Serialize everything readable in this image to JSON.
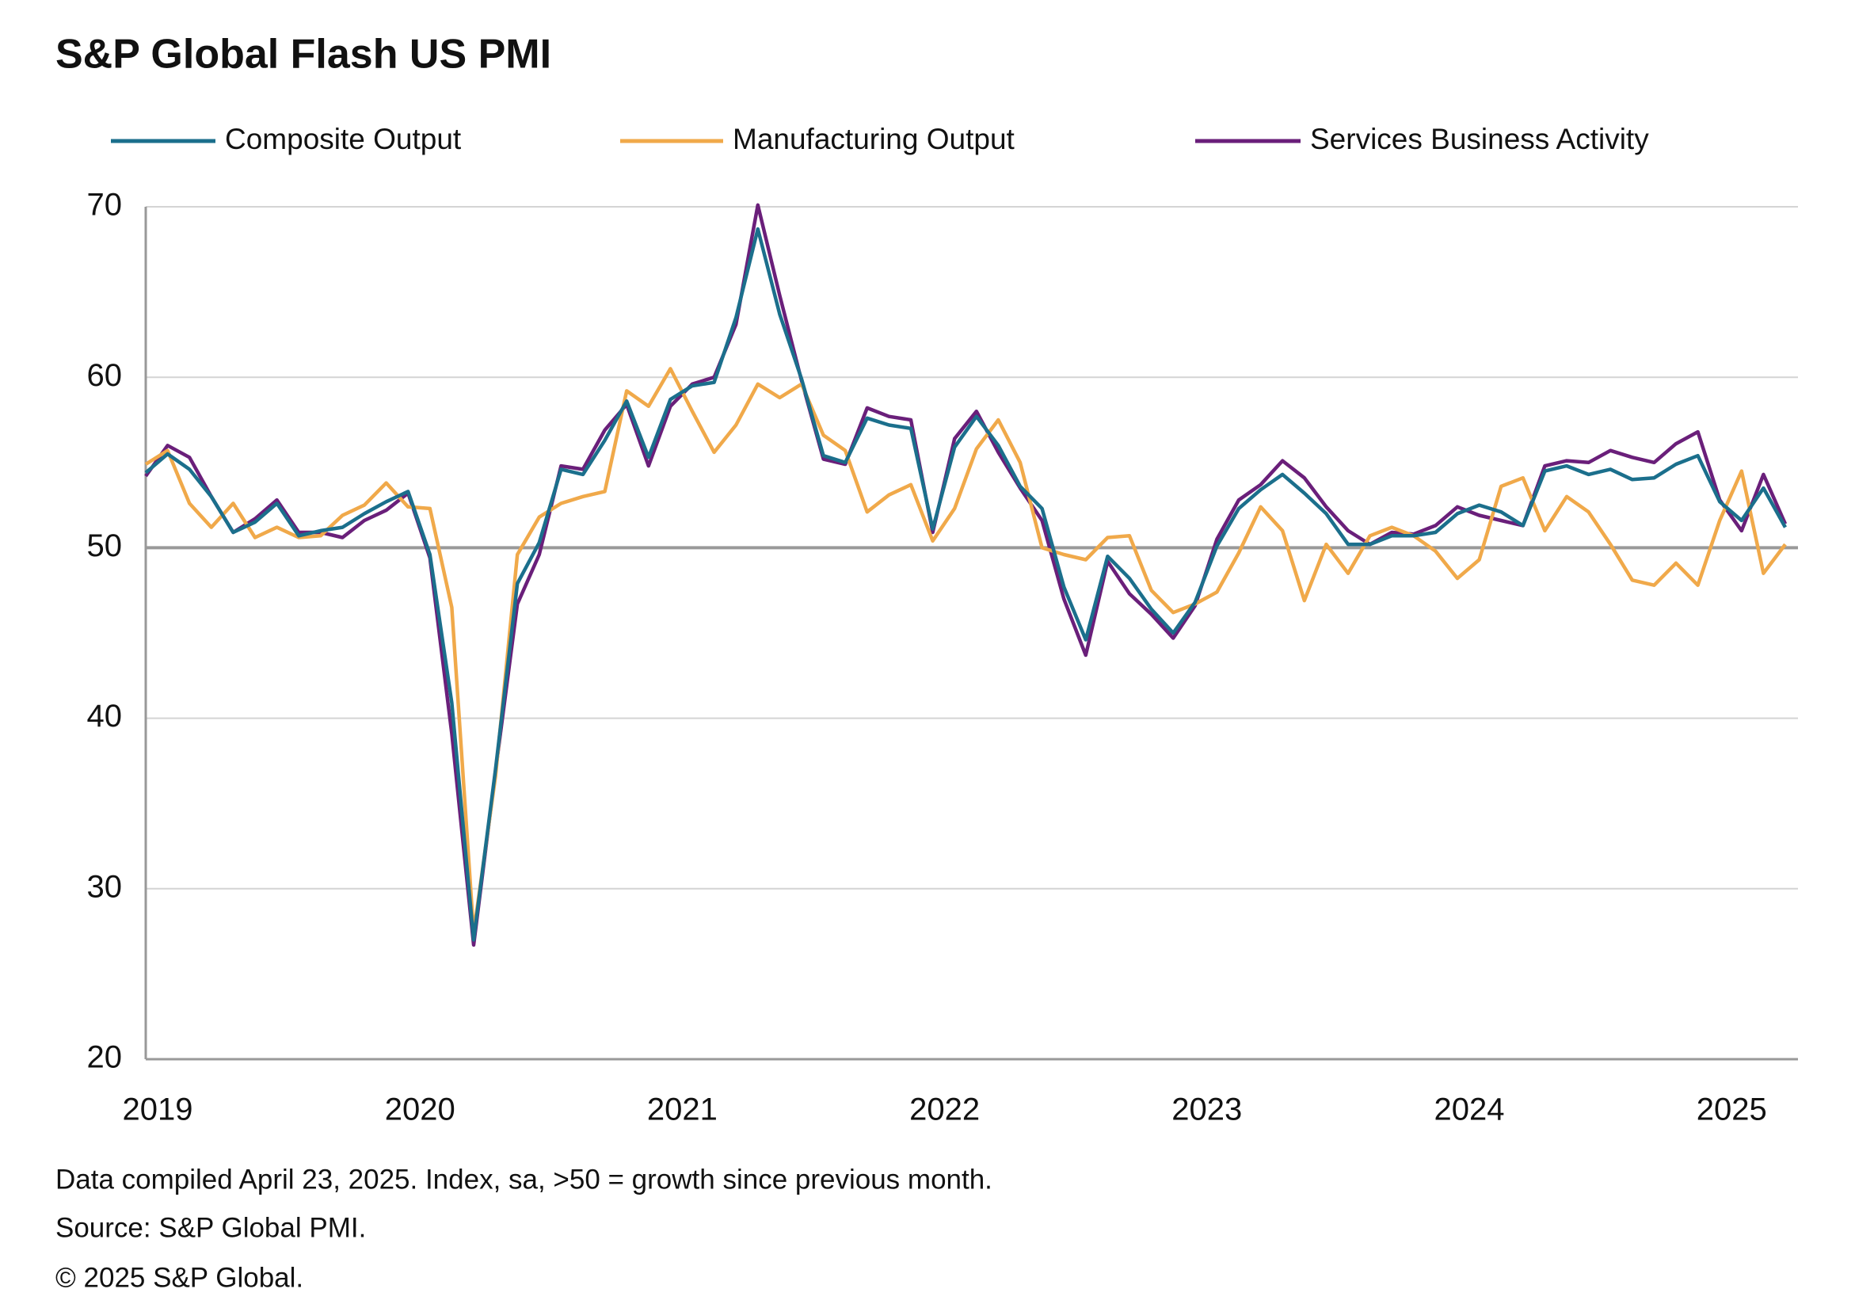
{
  "chart_data": {
    "type": "line",
    "title": "S&P Global Flash US PMI",
    "notes": [
      "Data compiled April 23, 2025. Index,  sa, >50 = growth since previous month.",
      "Source: S&P Global PMI.",
      "© 2025 S&P Global."
    ],
    "categories": [
      "2019",
      null,
      null,
      null,
      null,
      null,
      null,
      null,
      null,
      null,
      null,
      null,
      "2020",
      null,
      null,
      null,
      null,
      null,
      null,
      null,
      null,
      null,
      null,
      null,
      "2021",
      null,
      null,
      null,
      null,
      null,
      null,
      null,
      null,
      null,
      null,
      null,
      "2022",
      null,
      null,
      null,
      null,
      null,
      null,
      null,
      null,
      null,
      null,
      null,
      "2023",
      null,
      null,
      null,
      null,
      null,
      null,
      null,
      null,
      null,
      null,
      null,
      "2024",
      null,
      null,
      null,
      null,
      null,
      null,
      null,
      null,
      null,
      null,
      null,
      "2025",
      null,
      null,
      null
    ],
    "series": [
      {
        "name": "Composite Output",
        "color": "#1b6f8c",
        "values": [
          54.4,
          55.5,
          54.6,
          53.0,
          50.9,
          51.5,
          52.6,
          50.7,
          51.0,
          51.2,
          52.0,
          52.7,
          53.3,
          49.6,
          40.9,
          27.0,
          37.0,
          47.9,
          50.3,
          54.6,
          54.3,
          56.3,
          58.6,
          55.3,
          58.7,
          59.5,
          59.7,
          63.5,
          68.7,
          63.7,
          59.9,
          55.4,
          55.0,
          57.6,
          57.2,
          57.0,
          51.1,
          55.9,
          57.7,
          56.0,
          53.6,
          52.3,
          47.7,
          44.6,
          49.5,
          48.2,
          46.4,
          45.0,
          46.8,
          50.1,
          52.3,
          53.4,
          54.3,
          53.2,
          52.0,
          50.2,
          50.2,
          50.7,
          50.7,
          50.9,
          52.0,
          52.5,
          52.1,
          51.3,
          54.5,
          54.8,
          54.3,
          54.6,
          54.0,
          54.1,
          54.9,
          55.4,
          52.7,
          51.6,
          53.5,
          51.2
        ]
      },
      {
        "name": "Manufacturing Output",
        "color": "#f0a94a",
        "values": [
          54.9,
          55.7,
          52.6,
          51.2,
          52.6,
          50.6,
          51.2,
          50.6,
          50.7,
          51.9,
          52.5,
          53.8,
          52.4,
          52.3,
          46.5,
          27.4,
          36.6,
          49.6,
          51.8,
          52.6,
          53.0,
          53.3,
          59.2,
          58.3,
          60.5,
          58.0,
          55.6,
          57.2,
          59.6,
          58.8,
          59.6,
          56.6,
          55.7,
          52.1,
          53.1,
          53.7,
          50.4,
          52.3,
          55.8,
          57.5,
          55.0,
          50.0,
          49.6,
          49.3,
          50.6,
          50.7,
          47.5,
          46.2,
          46.7,
          47.4,
          49.7,
          52.4,
          51.0,
          46.9,
          50.2,
          48.5,
          50.7,
          51.2,
          50.7,
          49.8,
          48.2,
          49.3,
          53.6,
          54.1,
          51.0,
          53.0,
          52.1,
          50.2,
          48.1,
          47.8,
          49.1,
          47.8,
          51.6,
          54.5,
          48.5,
          50.2
        ]
      },
      {
        "name": "Services Business Activity",
        "color": "#6a1f7a",
        "values": [
          54.2,
          56.0,
          55.3,
          53.0,
          50.9,
          51.7,
          52.8,
          50.9,
          50.9,
          50.6,
          51.6,
          52.2,
          53.2,
          49.4,
          39.1,
          26.7,
          36.9,
          46.7,
          49.6,
          54.8,
          54.6,
          56.9,
          58.4,
          54.8,
          58.3,
          59.6,
          60.0,
          63.1,
          70.1,
          64.8,
          59.8,
          55.2,
          54.9,
          58.2,
          57.7,
          57.5,
          50.9,
          56.4,
          58.0,
          55.6,
          53.5,
          51.6,
          47.0,
          43.7,
          49.2,
          47.3,
          46.1,
          44.7,
          46.6,
          50.5,
          52.8,
          53.7,
          55.1,
          54.1,
          52.4,
          51.0,
          50.2,
          50.9,
          50.8,
          51.3,
          52.4,
          51.9,
          51.6,
          51.3,
          54.8,
          55.1,
          55.0,
          55.7,
          55.3,
          55.0,
          56.1,
          56.8,
          52.8,
          51.0,
          54.3,
          51.4
        ]
      }
    ],
    "ylim": [
      20,
      70
    ],
    "yticks": [
      20,
      30,
      40,
      50,
      60,
      70
    ],
    "hline": 50,
    "grid": true
  }
}
